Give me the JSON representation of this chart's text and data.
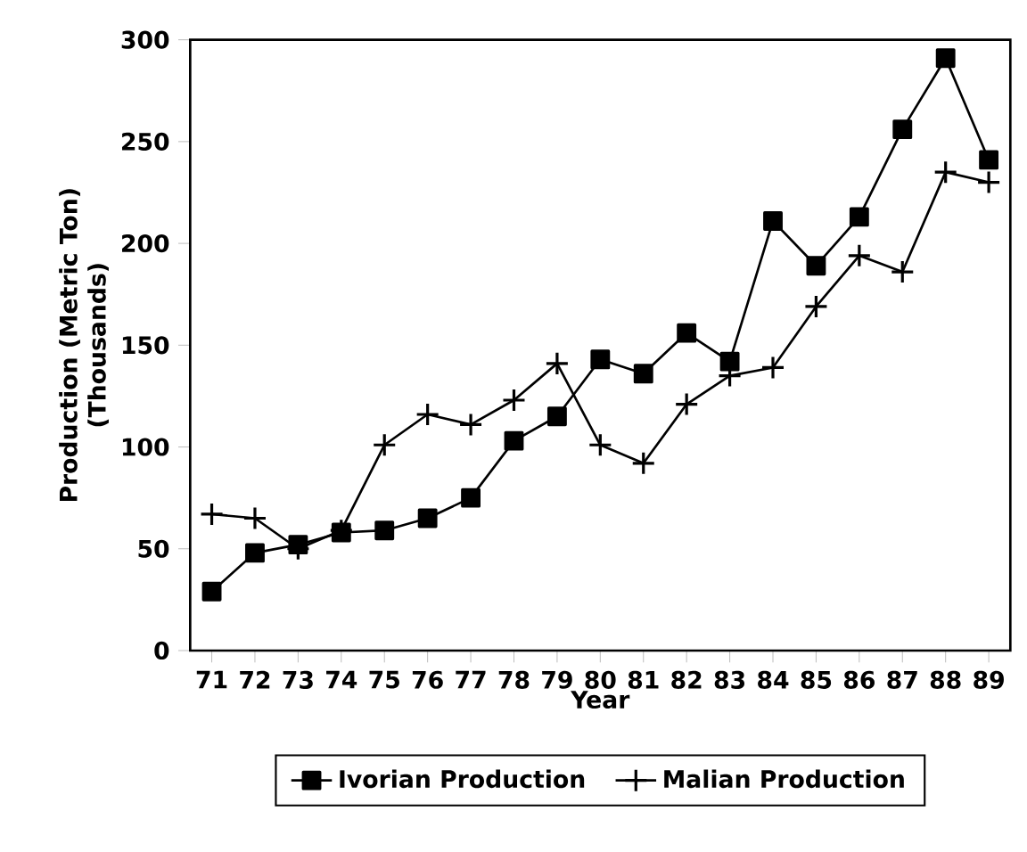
{
  "chart_data": {
    "type": "line",
    "xlabel": "Year",
    "ylabel": "Production (Metric Ton)\n(Thousands)",
    "categories": [
      "71",
      "72",
      "73",
      "74",
      "75",
      "76",
      "77",
      "78",
      "79",
      "80",
      "81",
      "82",
      "83",
      "84",
      "85",
      "86",
      "87",
      "88",
      "89"
    ],
    "series": [
      {
        "name": "Ivorian Production",
        "color": "#000000",
        "marker": "square",
        "values": [
          29,
          48,
          52,
          58,
          59,
          65,
          75,
          103,
          115,
          143,
          136,
          156,
          142,
          211,
          189,
          213,
          256,
          291,
          241
        ]
      },
      {
        "name": "Malian Production",
        "color": "#000000",
        "marker": "cross",
        "values": [
          67,
          65,
          50,
          59,
          101,
          116,
          111,
          123,
          141,
          101,
          92,
          121,
          135,
          139,
          169,
          194,
          186,
          235,
          230
        ]
      }
    ],
    "ylim": [
      0,
      300
    ],
    "yticks": [
      0,
      50,
      100,
      150,
      200,
      250,
      300
    ],
    "grid": false,
    "legend": "bottom",
    "line_style": "solid"
  }
}
